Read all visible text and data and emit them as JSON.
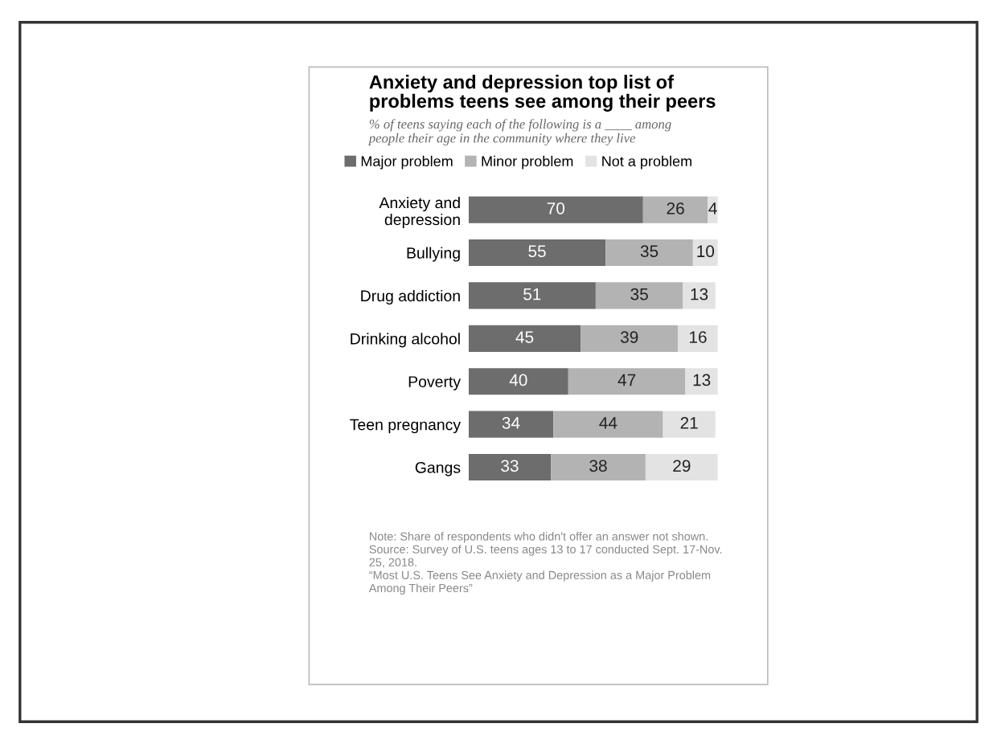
{
  "chart_data": {
    "type": "bar",
    "orientation": "horizontal",
    "stacked": true,
    "title": "Anxiety and depression top list of\nproblems teens see among their peers",
    "subtitle": "% of teens saying each of the following is a ____ among\npeople their age in the community where they live",
    "categories": [
      "Anxiety and\ndepression",
      "Bullying",
      "Drug addiction",
      "Drinking alcohol",
      "Poverty",
      "Teen pregnancy",
      "Gangs"
    ],
    "series": [
      {
        "name": "Major problem",
        "color": "#6d6d6d",
        "values": [
          70,
          55,
          51,
          45,
          40,
          34,
          33
        ]
      },
      {
        "name": "Minor problem",
        "color": "#b3b3b3",
        "values": [
          26,
          35,
          35,
          39,
          47,
          44,
          38
        ]
      },
      {
        "name": "Not a problem",
        "color": "#e3e3e3",
        "values": [
          4,
          10,
          13,
          16,
          13,
          21,
          29
        ]
      }
    ],
    "data_labels": true,
    "legend": "top",
    "tick_labels": "y",
    "grid": false,
    "annotations": [
      "Note: Share of respondents who didn't offer an answer not shown.\nSource: Survey of U.S. teens ages 13 to 17 conducted Sept. 17-Nov.\n25, 2018.\n“Most U.S. Teens See Anxiety and Depression as a Major Problem\nAmong Their Peers”"
    ]
  }
}
